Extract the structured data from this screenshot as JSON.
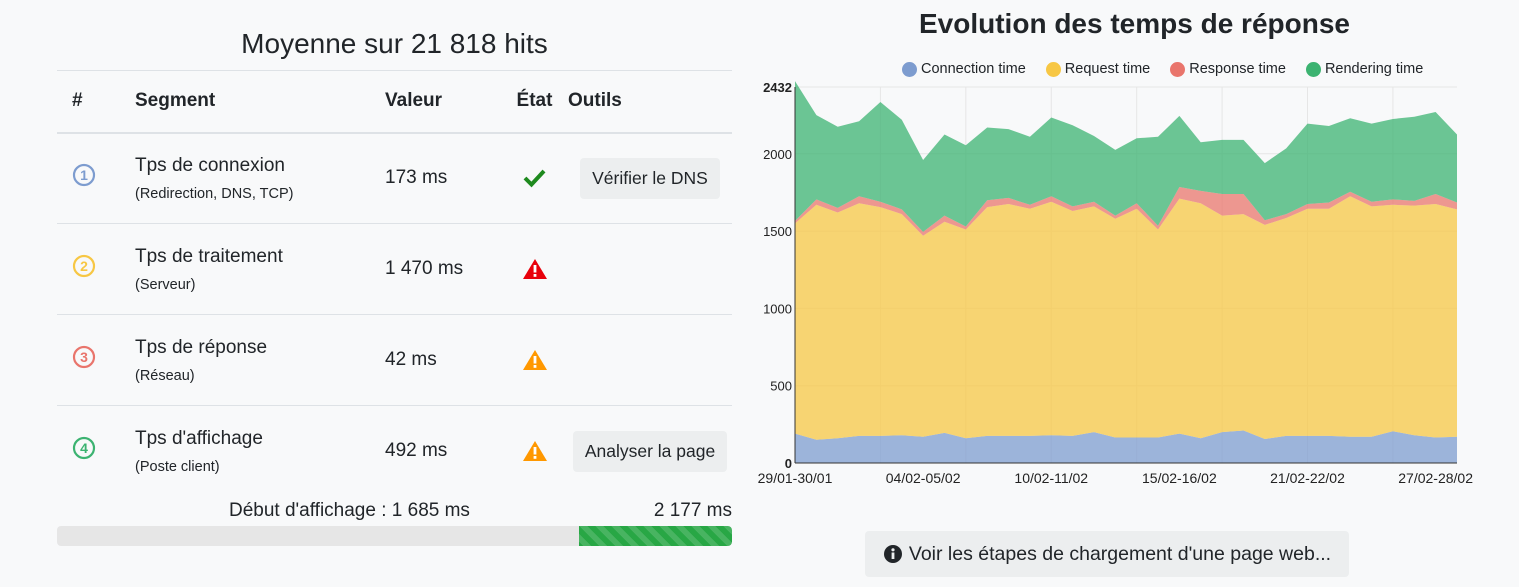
{
  "summary": {
    "title": "Moyenne sur 21 818 hits",
    "headers": {
      "num": "#",
      "segment": "Segment",
      "value": "Valeur",
      "state": "État",
      "tools": "Outils"
    },
    "rows": [
      {
        "num": "1",
        "color": "#7d9ccf",
        "label": "Tps de connexion",
        "sub": "(Redirection, DNS, TCP)",
        "value": "173 ms",
        "state": "ok",
        "tool": "Vérifier le DNS"
      },
      {
        "num": "2",
        "color": "#f7c744",
        "label": "Tps de traitement",
        "sub": "(Serveur)",
        "value": "1 470 ms",
        "state": "danger",
        "tool": ""
      },
      {
        "num": "3",
        "color": "#e9756c",
        "label": "Tps de réponse",
        "sub": "(Réseau)",
        "value": "42 ms",
        "state": "warning",
        "tool": ""
      },
      {
        "num": "4",
        "color": "#3cb371",
        "label": "Tps d'affichage",
        "sub": "(Poste client)",
        "value": "492 ms",
        "state": "warning",
        "tool": "Analyser la page"
      }
    ],
    "display_start_label": "Début d'affichage : 1 685 ms",
    "total_label": "2 177 ms",
    "progress": {
      "start_fraction": 0.774,
      "end_fraction": 1.0
    }
  },
  "info_button": {
    "label": "Voir les étapes de chargement d'une page web..."
  },
  "chart_data": {
    "type": "area",
    "stacked": true,
    "title": "Evolution des temps de réponse",
    "legend_position": "top",
    "x_tick_labels": [
      "29/01-30/01",
      "04/02-05/02",
      "10/02-11/02",
      "15/02-16/02",
      "21/02-22/02",
      "27/02-28/02"
    ],
    "y_ticks": [
      0,
      500,
      1000,
      1500,
      2000,
      2432
    ],
    "ylim": [
      0,
      2432
    ],
    "grid": true,
    "series": [
      {
        "name": "Connection time",
        "color": "#7d9ccf",
        "values": [
          190,
          150,
          160,
          175,
          175,
          180,
          170,
          195,
          160,
          175,
          175,
          175,
          180,
          175,
          200,
          165,
          165,
          165,
          190,
          160,
          200,
          210,
          155,
          175,
          175,
          175,
          170,
          170,
          205,
          180,
          165,
          170
        ]
      },
      {
        "name": "Request time",
        "color": "#f7c744",
        "values": [
          1360,
          1520,
          1460,
          1505,
          1480,
          1430,
          1300,
          1365,
          1350,
          1480,
          1500,
          1470,
          1510,
          1455,
          1460,
          1415,
          1480,
          1345,
          1520,
          1520,
          1400,
          1400,
          1385,
          1410,
          1470,
          1470,
          1555,
          1490,
          1465,
          1485,
          1510,
          1470
        ]
      },
      {
        "name": "Response time",
        "color": "#e9756c",
        "values": [
          15,
          35,
          30,
          45,
          35,
          30,
          25,
          40,
          20,
          45,
          40,
          25,
          35,
          30,
          30,
          20,
          35,
          25,
          75,
          80,
          140,
          130,
          30,
          25,
          30,
          40,
          30,
          30,
          35,
          30,
          65,
          45
        ]
      },
      {
        "name": "Rendering time",
        "color": "#3cb371",
        "values": [
          905,
          545,
          525,
          485,
          645,
          580,
          465,
          525,
          525,
          470,
          445,
          440,
          510,
          525,
          425,
          425,
          420,
          575,
          460,
          315,
          350,
          350,
          370,
          425,
          520,
          495,
          475,
          505,
          520,
          545,
          530,
          440
        ]
      }
    ]
  }
}
